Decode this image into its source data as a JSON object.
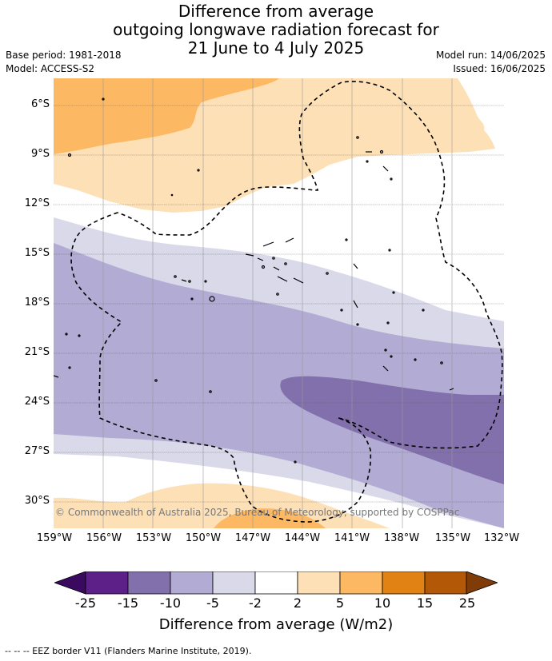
{
  "title": {
    "line1": "Difference from average",
    "line2": "outgoing longwave radiation forecast for",
    "line3": "21 June to 4 July 2025"
  },
  "meta": {
    "base_period": "Base period: 1981-2018",
    "model": "Model: ACCESS-S2",
    "model_run": "Model run: 14/06/2025",
    "issued": "Issued: 16/06/2025"
  },
  "axes": {
    "lat_labels": [
      "6°S",
      "9°S",
      "12°S",
      "15°S",
      "18°S",
      "21°S",
      "24°S",
      "27°S",
      "30°S"
    ],
    "lon_labels": [
      "159°W",
      "156°W",
      "153°W",
      "150°W",
      "147°W",
      "144°W",
      "141°W",
      "138°W",
      "135°W",
      "132°W"
    ]
  },
  "copyright": "© Commonwealth of Australia 2025, Bureau of Meteorology, supported by COSPPac",
  "colorbar": {
    "ticks": [
      "-25",
      "-15",
      "-10",
      "-5",
      "-2",
      "2",
      "5",
      "10",
      "15",
      "25"
    ],
    "colors": [
      "#5c2088",
      "#8170ab",
      "#b2abd3",
      "#d9d9ea",
      "#ffffff",
      "#fee0b6",
      "#fdb863",
      "#e08214",
      "#b35806"
    ],
    "under_color": "#3a0a60",
    "over_color": "#7f3b08",
    "label": "Difference from average (W/m2)"
  },
  "footer": "--  --  -- EEZ border V11 (Flanders Marine Institute, 2019)."
}
